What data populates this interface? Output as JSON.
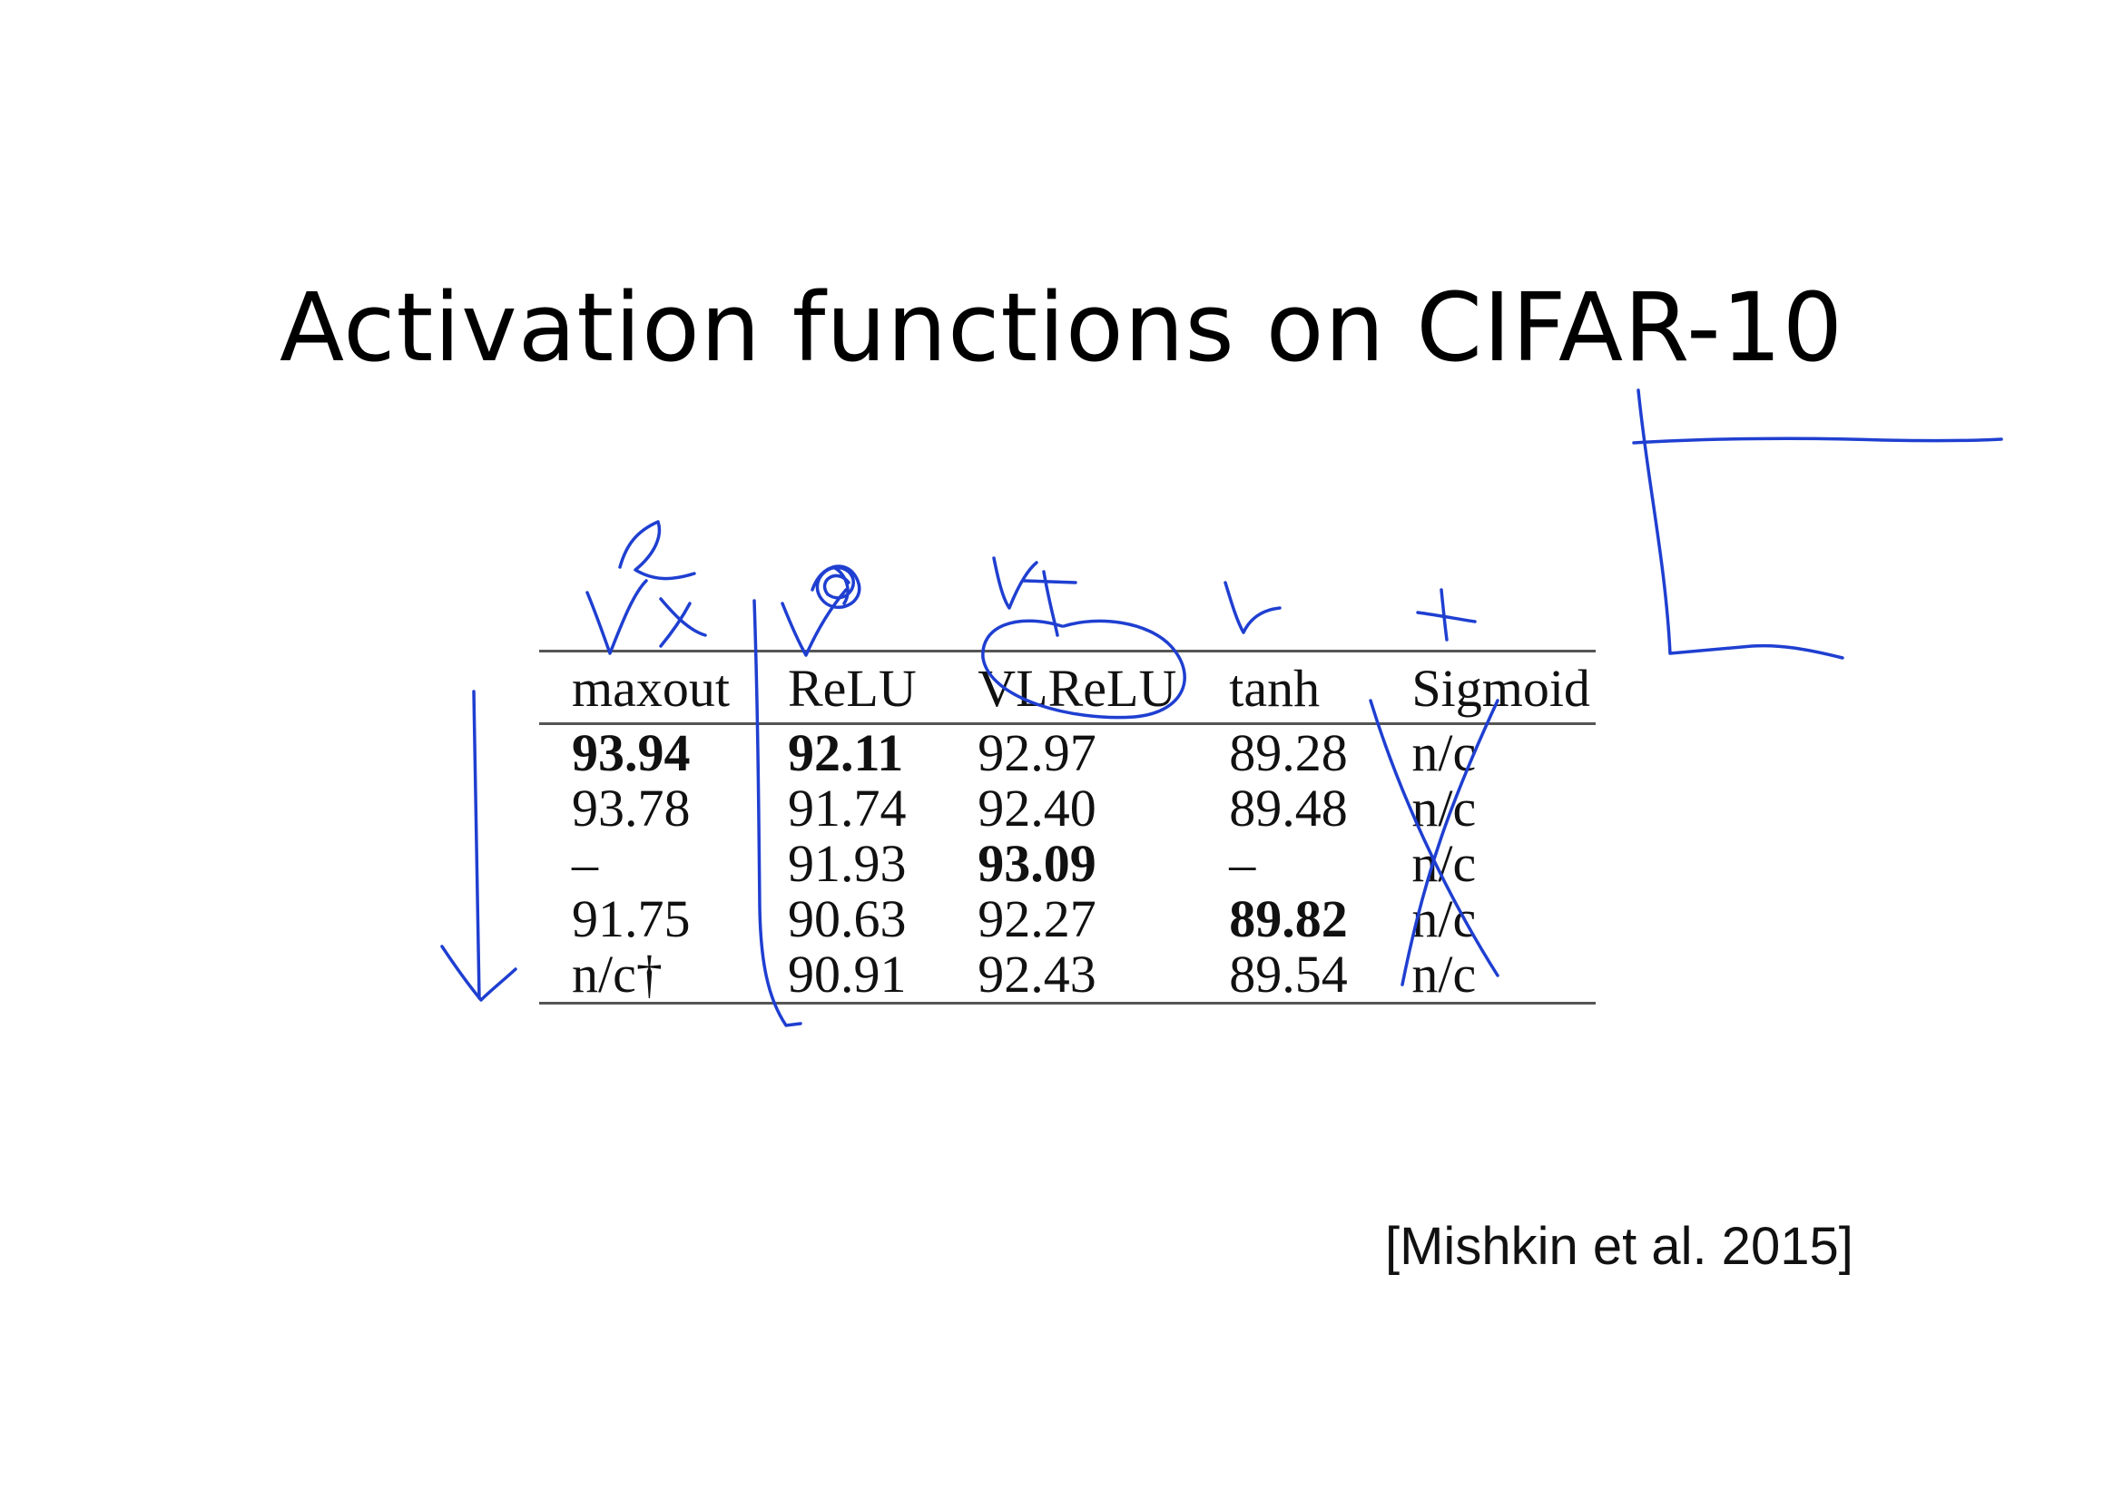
{
  "title": "Activation functions on CIFAR-10",
  "table": {
    "columns": [
      "maxout",
      "ReLU",
      "VLReLU",
      "tanh",
      "Sigmoid"
    ],
    "rows": [
      {
        "cells": [
          "93.94",
          "92.11",
          "92.97",
          "89.28",
          "n/c"
        ],
        "bold": [
          true,
          true,
          false,
          false,
          false
        ]
      },
      {
        "cells": [
          "93.78",
          "91.74",
          "92.40",
          "89.48",
          "n/c"
        ],
        "bold": [
          false,
          false,
          false,
          false,
          false
        ]
      },
      {
        "cells": [
          "–",
          "91.93",
          "93.09",
          "–",
          "n/c"
        ],
        "bold": [
          false,
          false,
          true,
          false,
          false
        ]
      },
      {
        "cells": [
          "91.75",
          "90.63",
          "92.27",
          "89.82",
          "n/c"
        ],
        "bold": [
          false,
          false,
          false,
          true,
          false
        ]
      },
      {
        "cells": [
          "n/c†",
          "90.91",
          "92.43",
          "89.54",
          "n/c"
        ],
        "bold": [
          false,
          false,
          false,
          false,
          false
        ]
      }
    ]
  },
  "citation": "[Mishkin et al. 2015]",
  "annotation_color": "#1f3fd1"
}
